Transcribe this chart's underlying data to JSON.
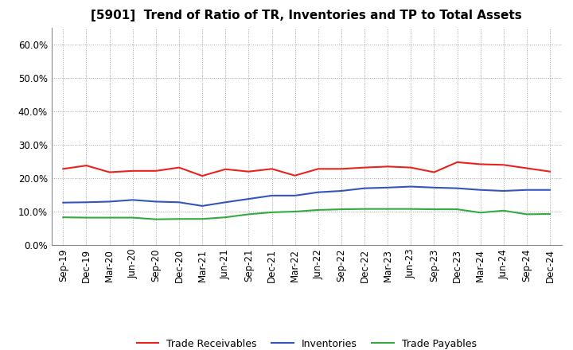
{
  "title": "[5901]  Trend of Ratio of TR, Inventories and TP to Total Assets",
  "x_labels": [
    "Sep-19",
    "Dec-19",
    "Mar-20",
    "Jun-20",
    "Sep-20",
    "Dec-20",
    "Mar-21",
    "Jun-21",
    "Sep-21",
    "Dec-21",
    "Mar-22",
    "Jun-22",
    "Sep-22",
    "Dec-22",
    "Mar-23",
    "Jun-23",
    "Sep-23",
    "Dec-23",
    "Mar-24",
    "Jun-24",
    "Sep-24",
    "Dec-24"
  ],
  "trade_receivables": [
    0.228,
    0.238,
    0.218,
    0.222,
    0.222,
    0.232,
    0.207,
    0.227,
    0.22,
    0.228,
    0.208,
    0.228,
    0.228,
    0.232,
    0.235,
    0.232,
    0.218,
    0.248,
    0.242,
    0.24,
    0.23,
    0.22
  ],
  "inventories": [
    0.127,
    0.128,
    0.13,
    0.135,
    0.13,
    0.128,
    0.117,
    0.128,
    0.138,
    0.148,
    0.148,
    0.158,
    0.162,
    0.17,
    0.172,
    0.175,
    0.172,
    0.17,
    0.165,
    0.162,
    0.165,
    0.165
  ],
  "trade_payables": [
    0.083,
    0.082,
    0.082,
    0.082,
    0.077,
    0.078,
    0.078,
    0.083,
    0.092,
    0.098,
    0.1,
    0.105,
    0.107,
    0.108,
    0.108,
    0.108,
    0.107,
    0.107,
    0.097,
    0.103,
    0.092,
    0.093
  ],
  "tr_color": "#e8231e",
  "inv_color": "#3355bb",
  "tp_color": "#33aa44",
  "ylim": [
    0.0,
    0.65
  ],
  "yticks": [
    0.0,
    0.1,
    0.2,
    0.3,
    0.4,
    0.5,
    0.6
  ],
  "ytick_labels": [
    "0.0%",
    "10.0%",
    "20.0%",
    "30.0%",
    "40.0%",
    "50.0%",
    "60.0%"
  ],
  "legend_labels": [
    "Trade Receivables",
    "Inventories",
    "Trade Payables"
  ],
  "background_color": "#ffffff",
  "grid_color": "#999999",
  "title_fontsize": 11,
  "tick_fontsize": 8.5,
  "legend_fontsize": 9
}
